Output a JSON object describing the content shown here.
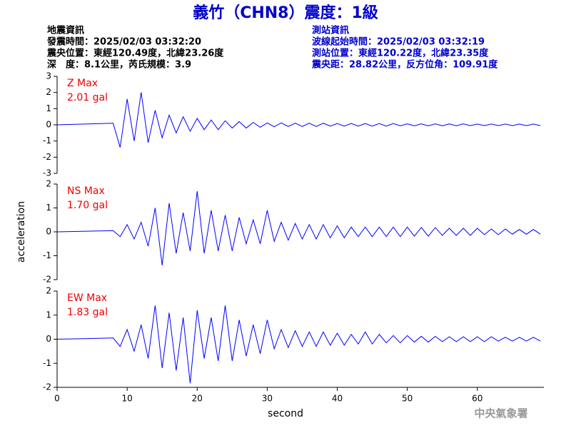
{
  "header": {
    "title": "義竹（CHN8）震度：1級",
    "left": [
      "地震資訊",
      "發震時間：2025/02/03 03:32:20",
      "震央位置：東經120.49度，北緯23.26度",
      "深　度：8.1公里，芮氏規模：3.9"
    ],
    "right": [
      "測站資訊",
      "波線起始時間：2025/02/03 03:32:19",
      "測站位置：東經120.22度，北緯23.35度",
      "震央距：28.82公里，反方位角：109.91度"
    ],
    "ylabel": "acceleration",
    "xlabel": "second",
    "footer": "中央氣象署"
  },
  "chart_data": [
    {
      "type": "line",
      "label": "Z Max",
      "max_label": "2.01 gal",
      "color": "#0000ff",
      "x": [
        0,
        8,
        9,
        10,
        11,
        12,
        13,
        14,
        15,
        16,
        17,
        18,
        19,
        20,
        21,
        22,
        23,
        24,
        25,
        26,
        27,
        28,
        29,
        30,
        31,
        32,
        33,
        34,
        35,
        36,
        37,
        38,
        39,
        40,
        41,
        42,
        43,
        44,
        45,
        46,
        47,
        48,
        49,
        50,
        51,
        52,
        53,
        54,
        55,
        56,
        57,
        58,
        59,
        60,
        61,
        62,
        63,
        64,
        65,
        66,
        67,
        68,
        69
      ],
      "values": [
        0,
        0.1,
        -1.4,
        1.6,
        -1.0,
        2.01,
        -1.1,
        0.9,
        -0.8,
        0.6,
        -0.5,
        0.5,
        -0.4,
        0.4,
        -0.3,
        0.3,
        -0.3,
        0.25,
        -0.2,
        0.2,
        -0.2,
        0.15,
        -0.15,
        0.12,
        -0.12,
        0.12,
        -0.1,
        0.1,
        -0.1,
        0.1,
        -0.1,
        0.1,
        -0.08,
        0.08,
        -0.08,
        0.08,
        -0.08,
        0.08,
        -0.08,
        0.08,
        -0.08,
        0.08,
        -0.06,
        0.06,
        -0.06,
        0.06,
        -0.06,
        0.06,
        -0.06,
        0.06,
        -0.06,
        0.06,
        -0.05,
        0.05,
        -0.05,
        0.05,
        -0.05,
        0.05,
        -0.05,
        0.05,
        -0.05,
        0.05,
        -0.05
      ],
      "xlim": [
        0,
        69.5
      ],
      "ylim": [
        -3,
        3
      ],
      "yticks": [
        -3,
        -2,
        -1,
        0,
        1,
        2,
        3
      ]
    },
    {
      "type": "line",
      "label": "NS Max",
      "max_label": "1.70 gal",
      "color": "#0000ff",
      "x": [
        0,
        8,
        9,
        10,
        11,
        12,
        13,
        14,
        15,
        16,
        17,
        18,
        19,
        20,
        21,
        22,
        23,
        24,
        25,
        26,
        27,
        28,
        29,
        30,
        31,
        32,
        33,
        34,
        35,
        36,
        37,
        38,
        39,
        40,
        41,
        42,
        43,
        44,
        45,
        46,
        47,
        48,
        49,
        50,
        51,
        52,
        53,
        54,
        55,
        56,
        57,
        58,
        59,
        60,
        61,
        62,
        63,
        64,
        65,
        66,
        67,
        68,
        69
      ],
      "values": [
        0,
        0.05,
        -0.2,
        0.3,
        -0.3,
        0.4,
        -0.6,
        1.0,
        -1.4,
        1.2,
        -0.9,
        0.8,
        -0.8,
        1.7,
        -0.9,
        0.9,
        -0.8,
        0.7,
        -0.8,
        0.6,
        -0.5,
        0.5,
        -0.5,
        0.9,
        -0.4,
        0.4,
        -0.35,
        0.35,
        -0.3,
        0.3,
        -0.3,
        0.3,
        -0.25,
        0.25,
        -0.25,
        0.2,
        -0.2,
        0.2,
        -0.2,
        0.2,
        -0.2,
        0.2,
        -0.2,
        0.2,
        -0.18,
        0.18,
        -0.18,
        0.18,
        -0.15,
        0.15,
        -0.15,
        0.15,
        -0.15,
        0.15,
        -0.12,
        0.12,
        -0.12,
        0.12,
        -0.1,
        0.1,
        -0.1,
        0.1,
        -0.1
      ],
      "xlim": [
        0,
        69.5
      ],
      "ylim": [
        -2,
        2
      ],
      "yticks": [
        -2,
        -1,
        0,
        1,
        2
      ]
    },
    {
      "type": "line",
      "label": "EW Max",
      "max_label": "1.83 gal",
      "color": "#0000ff",
      "x": [
        0,
        8,
        9,
        10,
        11,
        12,
        13,
        14,
        15,
        16,
        17,
        18,
        19,
        20,
        21,
        22,
        23,
        24,
        25,
        26,
        27,
        28,
        29,
        30,
        31,
        32,
        33,
        34,
        35,
        36,
        37,
        38,
        39,
        40,
        41,
        42,
        43,
        44,
        45,
        46,
        47,
        48,
        49,
        50,
        51,
        52,
        53,
        54,
        55,
        56,
        57,
        58,
        59,
        60,
        61,
        62,
        63,
        64,
        65,
        66,
        67,
        68,
        69
      ],
      "values": [
        0,
        0.05,
        -0.3,
        0.4,
        -0.5,
        0.6,
        -0.8,
        1.4,
        -1.2,
        1.1,
        -1.3,
        0.9,
        -1.83,
        1.2,
        -0.8,
        0.9,
        -0.9,
        1.4,
        -0.9,
        0.8,
        -0.7,
        0.6,
        -0.6,
        0.8,
        -0.4,
        0.4,
        -0.35,
        0.35,
        -0.3,
        0.3,
        -0.3,
        0.3,
        -0.25,
        0.25,
        -0.25,
        0.2,
        -0.2,
        0.3,
        -0.2,
        0.2,
        -0.15,
        0.15,
        -0.15,
        0.15,
        -0.12,
        0.12,
        -0.12,
        0.12,
        -0.1,
        0.1,
        -0.1,
        0.1,
        -0.1,
        0.1,
        -0.1,
        0.1,
        -0.08,
        0.08,
        -0.08,
        0.08,
        -0.08,
        0.08,
        -0.08
      ],
      "xlim": [
        0,
        69.5
      ],
      "ylim": [
        -2,
        2
      ],
      "yticks": [
        -2,
        -1,
        0,
        1,
        2
      ],
      "xticks": [
        0,
        10,
        20,
        30,
        40,
        50,
        60
      ]
    }
  ]
}
